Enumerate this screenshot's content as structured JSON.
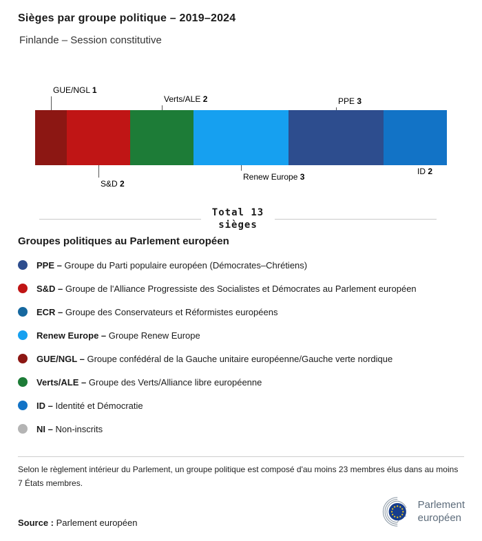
{
  "header": {
    "title": "Sièges par groupe politique – 2019–2024",
    "subtitle": "Finlande – Session constitutive"
  },
  "chart_data": {
    "type": "bar",
    "variant": "horizontal-stacked-seat-bar",
    "title": "Sièges par groupe politique – 2019–2024",
    "subtitle": "Finlande – Session constitutive",
    "total_seats": 13,
    "total_line1": "Total 13",
    "total_line2": "sièges",
    "categories": [
      "GUE/NGL",
      "S&D",
      "Verts/ALE",
      "Renew Europe",
      "PPE",
      "ID"
    ],
    "values": [
      1,
      2,
      2,
      3,
      3,
      2
    ],
    "segments": [
      {
        "name": "GUE/NGL",
        "seats": 1,
        "color": "#8c1713",
        "label_side": "above"
      },
      {
        "name": "S&D",
        "seats": 2,
        "color": "#c01515",
        "label_side": "below"
      },
      {
        "name": "Verts/ALE",
        "seats": 2,
        "color": "#1d7c37",
        "label_side": "above"
      },
      {
        "name": "Renew Europe",
        "seats": 3,
        "color": "#16a0f0",
        "label_side": "below"
      },
      {
        "name": "PPE",
        "seats": 3,
        "color": "#2d4d8e",
        "label_side": "above"
      },
      {
        "name": "ID",
        "seats": 2,
        "color": "#1273c6",
        "label_side": "below"
      }
    ]
  },
  "legend": {
    "heading": "Groupes politiques au Parlement européen",
    "items": [
      {
        "abbr": "PPE –",
        "desc": "Groupe du Parti populaire européen (Démocrates–Chrétiens)",
        "color": "#2d4d8e"
      },
      {
        "abbr": "S&D –",
        "desc": "Groupe de l'Alliance Progressiste des Socialistes et Démocrates au Parlement européen",
        "color": "#c01515"
      },
      {
        "abbr": "ECR –",
        "desc": "Groupe des Conservateurs et Réformistes européens",
        "color": "#16689f"
      },
      {
        "abbr": "Renew Europe –",
        "desc": "Groupe Renew Europe",
        "color": "#16a0f0"
      },
      {
        "abbr": "GUE/NGL –",
        "desc": "Groupe confédéral de la Gauche unitaire européenne/Gauche verte nordique",
        "color": "#8c1713"
      },
      {
        "abbr": "Verts/ALE –",
        "desc": "Groupe des Verts/Alliance libre européenne",
        "color": "#1d7c37"
      },
      {
        "abbr": "ID –",
        "desc": "Identité et Démocratie",
        "color": "#1273c6"
      },
      {
        "abbr": "NI –",
        "desc": "Non-inscrits",
        "color": "#b4b4b4"
      }
    ]
  },
  "footer": {
    "note": "Selon le règlement intérieur du Parlement, un groupe politique est composé d'au moins 23 membres élus dans au moins 7 États membres.",
    "source_label": "Source :",
    "source_value": "Parlement européen",
    "logo_line1": "Parlement",
    "logo_line2": "européen"
  }
}
